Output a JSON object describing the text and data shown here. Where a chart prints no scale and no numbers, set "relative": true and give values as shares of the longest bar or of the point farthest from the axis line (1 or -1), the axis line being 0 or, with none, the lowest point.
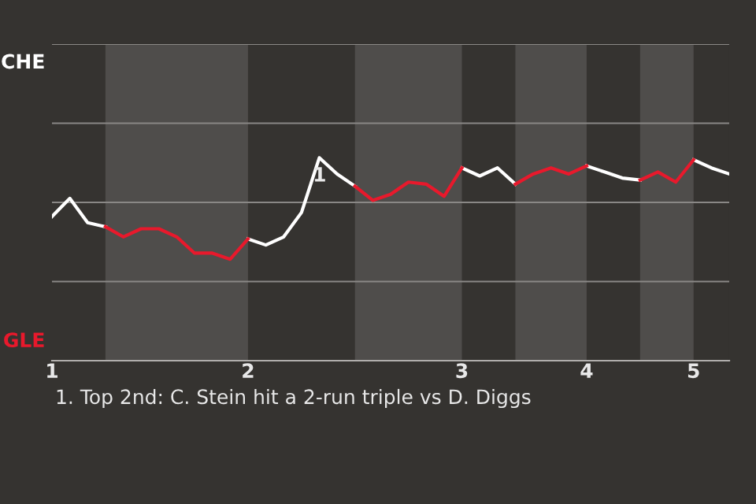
{
  "chart_data": {
    "type": "line",
    "relative": true,
    "categories": [
      "1",
      null,
      null,
      null,
      null,
      null,
      null,
      null,
      null,
      null,
      null,
      "2",
      null,
      null,
      null,
      null,
      null,
      null,
      null,
      null,
      null,
      null,
      null,
      "3",
      null,
      null,
      null,
      null,
      null,
      null,
      "4",
      null,
      null,
      null,
      null,
      null,
      "5",
      null,
      null
    ],
    "series": [
      {
        "name": "CHE",
        "color": "#ffffff",
        "values": [
          0.71,
          0.8,
          0.68,
          0.66,
          null,
          null,
          null,
          null,
          null,
          null,
          null,
          0.6,
          0.57,
          0.61,
          0.73,
          1,
          0.92,
          0.86,
          null,
          null,
          null,
          null,
          null,
          0.95,
          0.91,
          0.95,
          0.87,
          null,
          null,
          null,
          0.96,
          0.93,
          0.9,
          0.89,
          null,
          null,
          0.99,
          0.95,
          0.92
        ]
      },
      {
        "name": "GLE",
        "color": "#e8192c",
        "values": [
          null,
          null,
          null,
          0.66,
          0.61,
          0.65,
          0.65,
          0.61,
          0.53,
          0.53,
          0.5,
          0.6,
          null,
          null,
          null,
          null,
          null,
          0.86,
          0.79,
          0.82,
          0.88,
          0.87,
          0.81,
          0.95,
          null,
          null,
          0.87,
          0.92,
          0.95,
          0.92,
          0.96,
          null,
          null,
          0.89,
          0.93,
          0.88,
          0.99,
          null,
          null
        ]
      }
    ],
    "ref_lines": [
      {
        "axis": "y",
        "value": 0.39,
        "color": "#8a8886"
      },
      {
        "axis": "y",
        "value": 0.78,
        "color": "#8a8886"
      },
      {
        "axis": "y",
        "value": 1.17,
        "color": "#8a8886"
      },
      {
        "axis": "y",
        "value": 1.56,
        "color": "#8a8886"
      }
    ],
    "annotations": [
      {
        "text": "1",
        "y": 1
      },
      "1. Top 2nd: C. Stein hit a 2-run triple vs D. Diggs"
    ]
  }
}
